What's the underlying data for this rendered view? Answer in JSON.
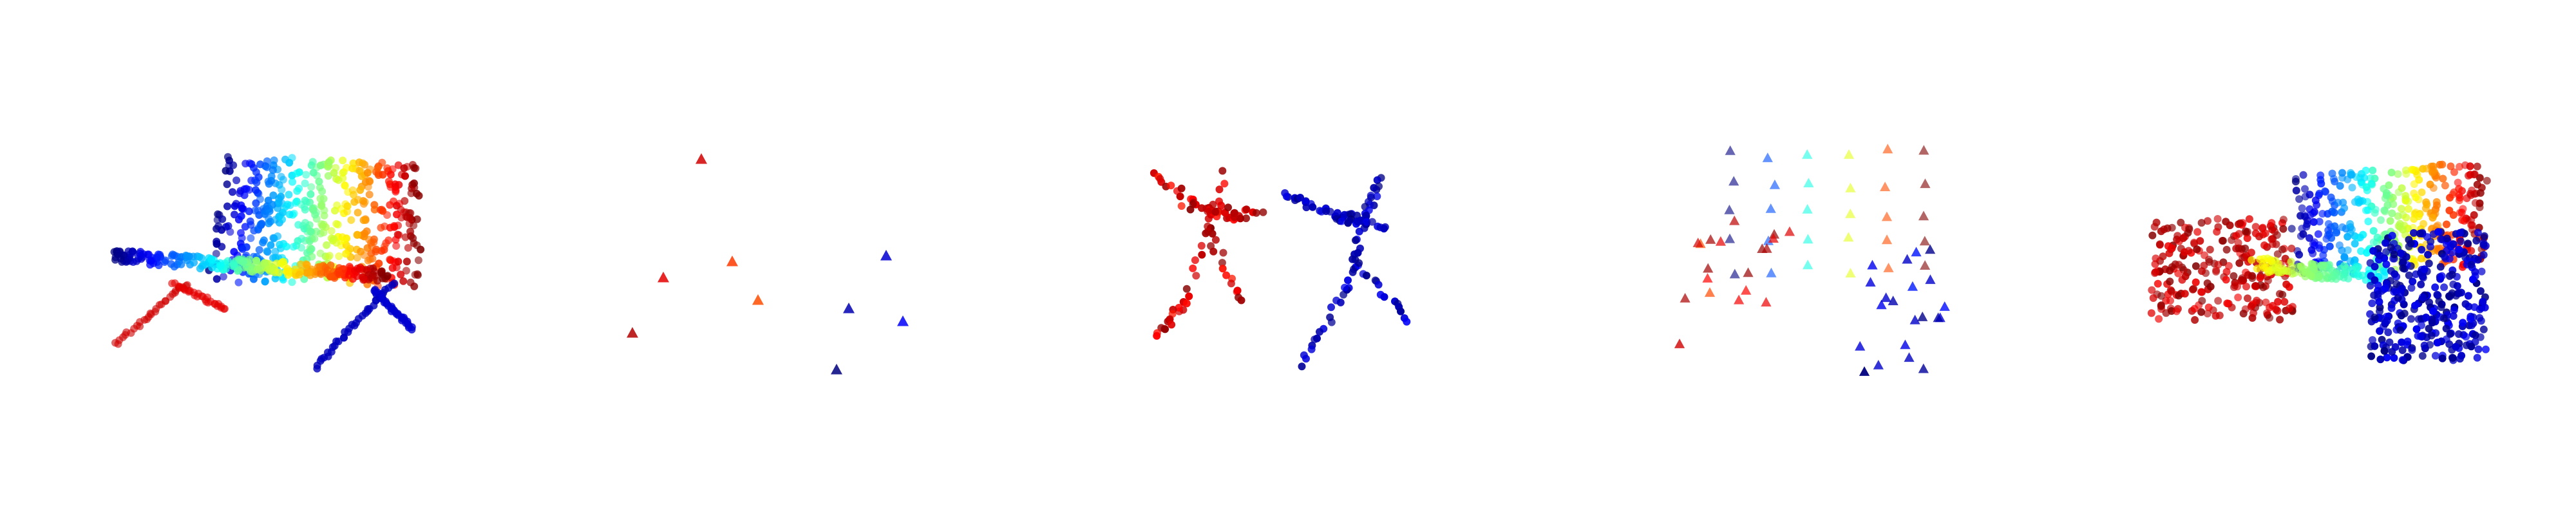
{
  "figure": {
    "panel_count": 5,
    "background": "#ffffff",
    "colormap": "jet",
    "panels": [
      {
        "id": "panel-1",
        "content": "chair-point-cloud",
        "marker": "circle",
        "point_count": "dense"
      },
      {
        "id": "panel-2",
        "content": "keypoints",
        "marker": "triangle",
        "point_count": 9
      },
      {
        "id": "panel-3",
        "content": "two-figure-point-clouds",
        "marker": "circle",
        "point_count": "medium"
      },
      {
        "id": "panel-4",
        "content": "keypoints",
        "marker": "triangle",
        "point_count": "medium"
      },
      {
        "id": "panel-5",
        "content": "object-point-cloud",
        "marker": "circle",
        "point_count": "dense"
      }
    ]
  }
}
